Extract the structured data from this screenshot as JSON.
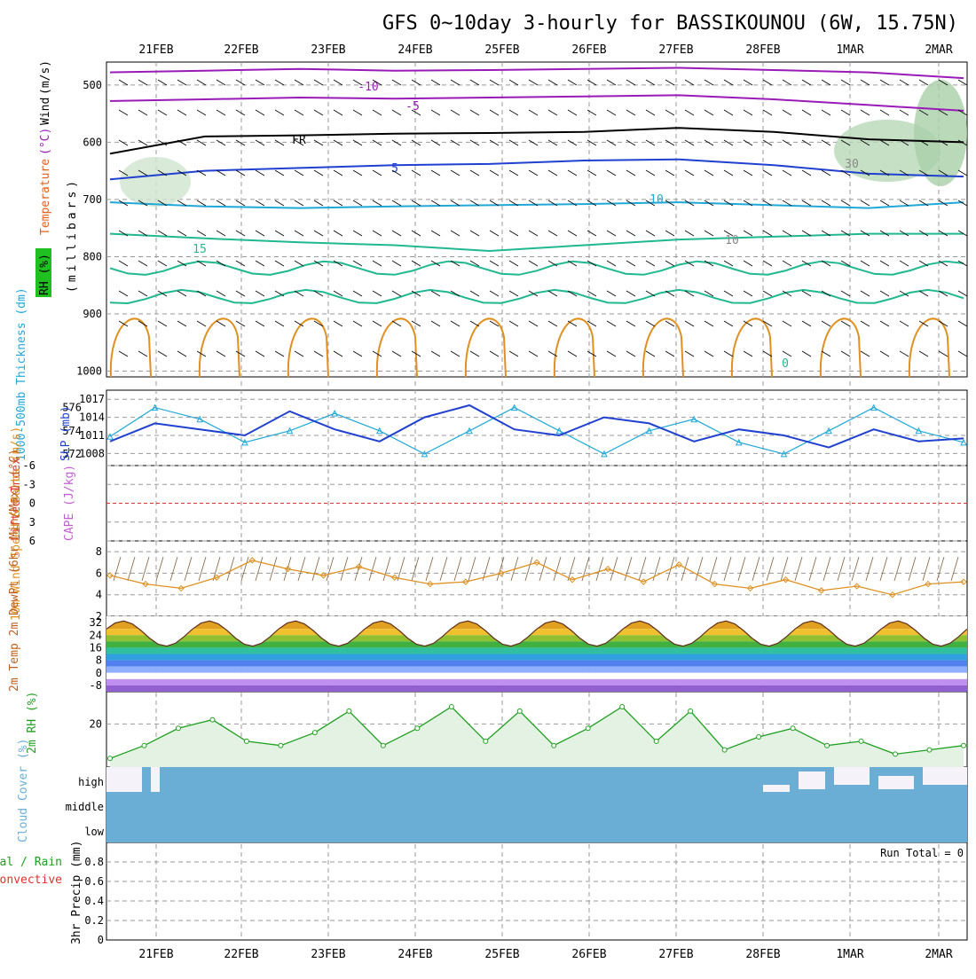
{
  "title": "GFS 0~10day 3-hourly for BASSIKOUNOU (6W, 15.75N)",
  "dates": [
    "21FEB",
    "22FEB",
    "23FEB",
    "24FEB",
    "25FEB",
    "26FEB",
    "27FEB",
    "28FEB",
    "1MAR",
    "2MAR"
  ],
  "colors": {
    "purple": "#9a1ab8",
    "blue": "#2040d0",
    "cyan": "#20a8d8",
    "teal": "#20b890",
    "orange": "#e09020",
    "green": "#20a020",
    "red": "#e03030",
    "cloud": "#6aaed6"
  },
  "chart_data": [
    {
      "type": "line",
      "panel": "upper-air",
      "ylabel_left": [
        "Temperature",
        "(°C)",
        "Wind",
        "(m/s)"
      ],
      "ylabel_unit": "(millibars)",
      "rh_legend": "RH (%)",
      "yticks": [
        "500",
        "600",
        "700",
        "800",
        "900",
        "1000"
      ],
      "ylim": [
        460,
        1010
      ],
      "contour_labels": [
        "-10",
        "-5",
        "FR",
        "5",
        "10",
        "15",
        "0",
        "30",
        "10"
      ],
      "isotherms": [
        {
          "name": "-10",
          "level": [
            478,
            475,
            472,
            475,
            474,
            472,
            470,
            474,
            478,
            488
          ]
        },
        {
          "name": "-5",
          "level": [
            528,
            525,
            522,
            524,
            522,
            520,
            518,
            525,
            535,
            545
          ]
        },
        {
          "name": "FR",
          "level": [
            620,
            590,
            588,
            585,
            584,
            582,
            575,
            582,
            595,
            600
          ]
        },
        {
          "name": "5",
          "level": [
            665,
            650,
            645,
            640,
            638,
            632,
            630,
            640,
            655,
            660
          ]
        },
        {
          "name": "10",
          "level": [
            705,
            712,
            715,
            712,
            710,
            708,
            705,
            710,
            715,
            705
          ]
        },
        {
          "name": "15",
          "level": [
            760,
            768,
            775,
            780,
            790,
            780,
            770,
            765,
            760,
            760
          ]
        }
      ]
    },
    {
      "type": "line",
      "panel": "thickness-slp",
      "ylabel": "1000-500mb Thickness (dm)",
      "ylabel2": "SLP (mb)",
      "yticks_left": [
        "576",
        "574",
        "572"
      ],
      "yticks_right": [
        "1017",
        "1014",
        "1011",
        "1008"
      ],
      "series": [
        {
          "name": "Thickness",
          "values": [
            573.5,
            576,
            575,
            573,
            574,
            575.5,
            574,
            572,
            574,
            576,
            574,
            572,
            574,
            575,
            573,
            572,
            574,
            576,
            574,
            573
          ]
        },
        {
          "name": "SLP",
          "values": [
            1010,
            1013,
            1012,
            1011,
            1015,
            1012,
            1010,
            1014,
            1016,
            1012,
            1011,
            1014,
            1013,
            1010,
            1012,
            1011,
            1009,
            1012,
            1010,
            1010.5
          ]
        }
      ]
    },
    {
      "type": "line",
      "panel": "lifted-index",
      "ylabel": "Lifted Index",
      "ylabel2": "CAPE (J/kg)",
      "yticks": [
        "-6",
        "-3",
        "0",
        "3",
        "6"
      ]
    },
    {
      "type": "line",
      "panel": "wind-10m",
      "ylabel": "10m Wind Speed & Barbs (m/s)",
      "yticks": [
        "8",
        "6",
        "4",
        "2"
      ],
      "ylim": [
        2,
        9
      ],
      "series": [
        {
          "name": "Speed",
          "values": [
            5.8,
            5.0,
            4.6,
            5.6,
            7.2,
            6.4,
            5.8,
            6.6,
            5.6,
            5.0,
            5.2,
            6.0,
            7.0,
            5.4,
            6.4,
            5.2,
            6.8,
            5.0,
            4.6,
            5.4,
            4.4,
            4.8,
            4.0,
            5.0,
            5.2
          ]
        }
      ]
    },
    {
      "type": "area",
      "panel": "temp-2m",
      "ylabel": "2m Temp 2m DewPt (6hr Min/Max) (°C)",
      "yticks": [
        "32",
        "24",
        "16",
        "8",
        "0",
        "-8"
      ],
      "ylim": [
        -12,
        36
      ]
    },
    {
      "type": "area",
      "panel": "rh-2m",
      "ylabel": "2m RH (%)",
      "yticks": [
        "20"
      ],
      "ylim": [
        0,
        35
      ],
      "series": [
        {
          "name": "RH",
          "values": [
            4,
            10,
            18,
            22,
            12,
            10,
            16,
            26,
            10,
            18,
            28,
            12,
            26,
            10,
            18,
            28,
            12,
            26,
            8,
            14,
            18,
            10,
            12,
            6,
            8,
            10
          ]
        }
      ]
    },
    {
      "type": "bar",
      "panel": "cloud-cover",
      "ylabel": "Cloud Cover (%)",
      "yticks": [
        "high",
        "middle",
        "low"
      ]
    },
    {
      "type": "bar",
      "panel": "precip",
      "ylabel": "3hr Precip (mm)",
      "legend": [
        "Total / Rain",
        "Convective"
      ],
      "run_total": "Run Total = 0",
      "yticks": [
        "0.8",
        "0.6",
        "0.4",
        "0.2",
        "0"
      ],
      "ylim": [
        0,
        1
      ]
    }
  ]
}
